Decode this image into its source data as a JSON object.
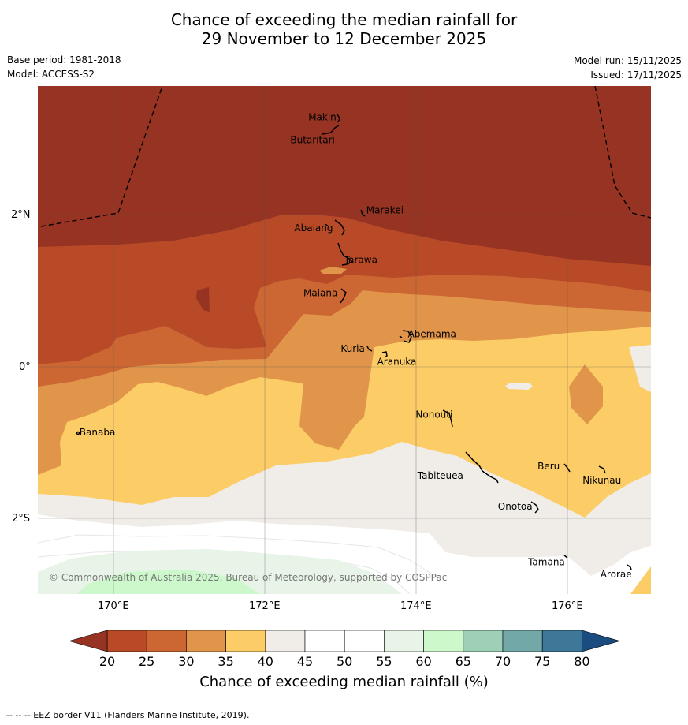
{
  "title": {
    "line1": "Chance of exceeding the median rainfall for",
    "line2": "29 November to 12 December 2025"
  },
  "meta": {
    "base_period": "Base period: 1981-2018",
    "model": "Model: ACCESS-S2",
    "model_run": "Model run: 15/11/2025",
    "issued": "Issued: 17/11/2025"
  },
  "axes": {
    "lat_labels": [
      "2°N",
      "0°",
      "2°S"
    ],
    "lon_labels": [
      "170°E",
      "172°E",
      "174°E",
      "176°E"
    ]
  },
  "places": [
    {
      "name": "Makin",
      "lon": 172.95,
      "lat": 3.3
    },
    {
      "name": "Butaritari",
      "lon": 172.9,
      "lat": 3.05
    },
    {
      "name": "Marakei",
      "lon": 173.3,
      "lat": 2.0
    },
    {
      "name": "Abaiang",
      "lon": 172.9,
      "lat": 1.85
    },
    {
      "name": "Tarawa",
      "lon": 173.05,
      "lat": 1.4
    },
    {
      "name": "Maiana",
      "lon": 173.0,
      "lat": 0.95
    },
    {
      "name": "Abemama",
      "lon": 173.85,
      "lat": 0.4
    },
    {
      "name": "Kuria",
      "lon": 173.42,
      "lat": 0.22
    },
    {
      "name": "Aranuka",
      "lon": 173.6,
      "lat": 0.17
    },
    {
      "name": "Nonouti",
      "lon": 174.4,
      "lat": -0.65
    },
    {
      "name": "Banaba",
      "lon": 169.55,
      "lat": -0.86
    },
    {
      "name": "Beru",
      "lon": 175.98,
      "lat": -1.33
    },
    {
      "name": "Nikunau",
      "lon": 176.45,
      "lat": -1.37
    },
    {
      "name": "Tabiteuea",
      "lon": 174.8,
      "lat": -1.3
    },
    {
      "name": "Onotoa",
      "lon": 175.55,
      "lat": -1.82
    },
    {
      "name": "Tamana",
      "lon": 175.98,
      "lat": -2.5
    },
    {
      "name": "Arorae",
      "lon": 176.82,
      "lat": -2.65
    }
  ],
  "copyright": "© Commonwealth of Australia 2025, Bureau of Meteorology, supported by COSPPac",
  "colorbar": {
    "title": "Chance of exceeding median rainfall (%)",
    "ticks": [
      "20",
      "25",
      "30",
      "35",
      "40",
      "45",
      "50",
      "55",
      "60",
      "65",
      "70",
      "75",
      "80"
    ],
    "colors": [
      "#b84a28",
      "#cc6633",
      "#e0954a",
      "#fccc66",
      "#f0ede8",
      "#ffffff",
      "#ffffff",
      "#e8f4e8",
      "#ccf8cc",
      "#9ed0b8",
      "#72a8a8",
      "#3e7898"
    ],
    "below_color": "#963322",
    "above_color": "#1a4c80"
  },
  "footer": "--  --  -- EEZ border V11 (Flanders Marine Institute, 2019)."
}
